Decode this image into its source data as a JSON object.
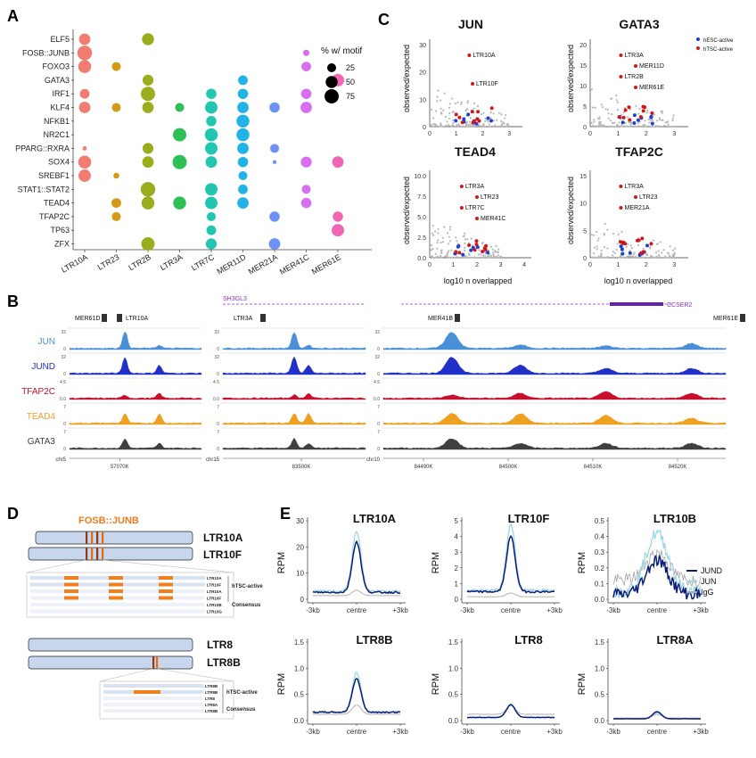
{
  "panels": {
    "A": {
      "letter": "A",
      "motifs": [
        "ELF5",
        "FOSB::JUNB",
        "FOXO3",
        "GATA3",
        "IRF1",
        "KLF4",
        "NFKB1",
        "NR2C1",
        "PPARG::RXRA",
        "SOX4",
        "SREBF1",
        "STAT1::STAT2",
        "TEAD4",
        "TFAP2C",
        "TP63",
        "ZFX"
      ],
      "families": [
        "LTR10A",
        "LTR23",
        "LTR2B",
        "LTR3A",
        "LTR7C",
        "MER11D",
        "MER21A",
        "MER41C",
        "MER61E"
      ],
      "family_colors": [
        "#f07c72",
        "#d49a16",
        "#9aad1c",
        "#2fbf57",
        "#20c6b0",
        "#22b3e6",
        "#6c93f4",
        "#d86ff0",
        "#f066b5"
      ],
      "legend_title": "% w/ motif",
      "legend_values": [
        "25",
        "50",
        "75"
      ],
      "dots": [
        [
          0,
          0,
          45
        ],
        [
          0,
          1,
          80
        ],
        [
          0,
          2,
          60
        ],
        [
          0,
          4,
          30
        ],
        [
          0,
          5,
          45
        ],
        [
          0,
          8,
          3
        ],
        [
          0,
          9,
          60
        ],
        [
          0,
          10,
          55
        ],
        [
          1,
          2,
          25
        ],
        [
          1,
          5,
          25
        ],
        [
          1,
          10,
          8
        ],
        [
          1,
          12,
          30
        ],
        [
          1,
          13,
          25
        ],
        [
          2,
          0,
          50
        ],
        [
          2,
          3,
          40
        ],
        [
          2,
          4,
          75
        ],
        [
          2,
          5,
          45
        ],
        [
          2,
          8,
          40
        ],
        [
          2,
          9,
          45
        ],
        [
          2,
          11,
          80
        ],
        [
          2,
          12,
          60
        ],
        [
          2,
          15,
          65
        ],
        [
          3,
          5,
          25
        ],
        [
          3,
          7,
          65
        ],
        [
          3,
          9,
          75
        ],
        [
          3,
          12,
          60
        ],
        [
          4,
          4,
          35
        ],
        [
          4,
          5,
          55
        ],
        [
          4,
          6,
          35
        ],
        [
          4,
          7,
          60
        ],
        [
          4,
          8,
          55
        ],
        [
          4,
          9,
          45
        ],
        [
          4,
          11,
          55
        ],
        [
          4,
          12,
          55
        ],
        [
          4,
          13,
          25
        ],
        [
          4,
          14,
          30
        ],
        [
          4,
          15,
          40
        ],
        [
          5,
          3,
          30
        ],
        [
          5,
          4,
          35
        ],
        [
          5,
          5,
          45
        ],
        [
          5,
          6,
          60
        ],
        [
          5,
          7,
          60
        ],
        [
          5,
          8,
          45
        ],
        [
          5,
          9,
          35
        ],
        [
          5,
          10,
          25
        ],
        [
          5,
          11,
          30
        ],
        [
          5,
          12,
          45
        ],
        [
          6,
          5,
          35
        ],
        [
          6,
          8,
          25
        ],
        [
          6,
          9,
          2
        ],
        [
          6,
          13,
          35
        ],
        [
          6,
          15,
          45
        ],
        [
          7,
          1,
          10
        ],
        [
          7,
          2,
          30
        ],
        [
          7,
          4,
          35
        ],
        [
          7,
          5,
          45
        ],
        [
          7,
          9,
          40
        ],
        [
          7,
          11,
          25
        ],
        [
          7,
          12,
          35
        ],
        [
          8,
          3,
          55
        ],
        [
          8,
          9,
          45
        ],
        [
          8,
          13,
          35
        ],
        [
          8,
          14,
          55
        ]
      ]
    },
    "B": {
      "letter": "B",
      "tracks": [
        "JUN",
        "JUND",
        "TFAP2C",
        "TEAD4",
        "GATA3"
      ],
      "track_colors": [
        "#4a90d9",
        "#2130c8",
        "#c8102e",
        "#eea020",
        "#404040"
      ],
      "ranges": [
        "32",
        "32",
        "4.5",
        "7",
        "7"
      ],
      "range_zeros": [
        "0",
        "0",
        "0.0",
        "0",
        "0"
      ],
      "loci": [
        {
          "chr": "chr5",
          "ticks": [
            "57070K"
          ],
          "features": [
            "MER61D",
            "LTR10A"
          ],
          "gene": "",
          "gene2": ""
        },
        {
          "chr": "chr15",
          "ticks": [
            "83500K"
          ],
          "features": [
            "LTR3A"
          ],
          "gene": "SH3GL3",
          "gene2": ""
        },
        {
          "chr": "chr10",
          "ticks": [
            "84490K",
            "84500K",
            "84510K",
            "84520K"
          ],
          "features": [
            "MER41B",
            "MER61E"
          ],
          "gene": "",
          "gene2": "CCSER2"
        }
      ]
    },
    "C": {
      "letter": "C",
      "plots": [
        {
          "title": "JUN",
          "ylim": [
            0,
            30
          ],
          "yticks": [
            "0",
            "10",
            "20",
            "30"
          ],
          "xticks": [
            "0",
            "1",
            "2",
            "3"
          ],
          "labels": [
            "LTR10A",
            "LTR10F"
          ]
        },
        {
          "title": "GATA3",
          "ylim": [
            0,
            20
          ],
          "yticks": [
            "0",
            "5",
            "10",
            "15",
            "20"
          ],
          "xticks": [
            "0",
            "1",
            "2",
            "3"
          ],
          "labels": [
            "LTR3A",
            "MER11D",
            "LTR2B",
            "MER61E"
          ]
        },
        {
          "title": "TEAD4",
          "ylim": [
            0,
            10
          ],
          "yticks": [
            "0.0",
            "2.5",
            "5.0",
            "7.5",
            "10.0"
          ],
          "xticks": [
            "0",
            "1",
            "2",
            "3",
            "4"
          ],
          "labels": [
            "LTR3A",
            "LTR23",
            "LTR7C",
            "MER41C"
          ]
        },
        {
          "title": "TFAP2C",
          "ylim": [
            0,
            15
          ],
          "yticks": [
            "0",
            "5",
            "10",
            "15"
          ],
          "xticks": [
            "0",
            "1",
            "2",
            "3"
          ],
          "labels": [
            "LTR3A",
            "LTR23",
            "MER21A"
          ]
        }
      ],
      "ylabel": "observed/expected",
      "xlabel": "log10 n overlapped",
      "legend": [
        "hESC-active",
        "hTSC-active"
      ],
      "legend_colors": [
        "#1f3fd0",
        "#d01818"
      ]
    },
    "D": {
      "letter": "D",
      "motif": "FOSB::JUNB",
      "top_elements": [
        "LTR10A",
        "LTR10F"
      ],
      "bottom_elements": [
        "LTR8",
        "LTR8B"
      ],
      "align_labels_top": [
        "LTR10A",
        "LTR10F",
        "LTR10A",
        "LTR10F",
        "LTR10B",
        "LTR10G"
      ],
      "align_labels_bottom": [
        "LTR8B",
        "LTR8B",
        "LTR8",
        "LTR8A",
        "LTR8B"
      ],
      "group_a": "hTSC-active",
      "group_b": "Consensus"
    },
    "E": {
      "letter": "E",
      "plots": [
        {
          "title": "LTR10A",
          "yticks": [
            "0",
            "10",
            "20",
            "30"
          ],
          "ymax": 30,
          "jund": 22,
          "jun": 26,
          "igg": 3.5
        },
        {
          "title": "LTR10F",
          "yticks": [
            "0",
            "1",
            "2",
            "3",
            "4",
            "5"
          ],
          "ymax": 5,
          "jund": 4,
          "jun": 4.8,
          "igg": 0.4
        },
        {
          "title": "LTR10B",
          "yticks": [
            "0.0",
            "0.1",
            "0.2",
            "0.3",
            "0.4",
            "0.5"
          ],
          "ymax": 0.5,
          "jund": 0.25,
          "jun": 0.42,
          "igg": 0.3
        },
        {
          "title": "LTR8B",
          "yticks": [
            "0.0",
            "0.5",
            "1.0",
            "1.5"
          ],
          "ymax": 1.5,
          "jund": 0.8,
          "jun": 0.92,
          "igg": 0.3
        },
        {
          "title": "LTR8",
          "yticks": [
            "0.0",
            "0.5",
            "1.0",
            "1.5"
          ],
          "ymax": 1.5,
          "jund": 0.3,
          "jun": 0.32,
          "igg": 0.3
        },
        {
          "title": "LTR8A",
          "yticks": [
            "0.0",
            "0.5",
            "1.0",
            "1.5"
          ],
          "ymax": 1.5,
          "jund": 0.17,
          "jun": 0.15,
          "igg": 0.12
        }
      ],
      "ylabel": "RPM",
      "xticks": [
        "-3kb",
        "centre",
        "+3kb"
      ],
      "legend": [
        "JUND",
        "JUN",
        "IgG"
      ],
      "legend_colors": [
        "#0b1f7a",
        "#9fd6e2",
        "#aaaaaa"
      ]
    }
  }
}
